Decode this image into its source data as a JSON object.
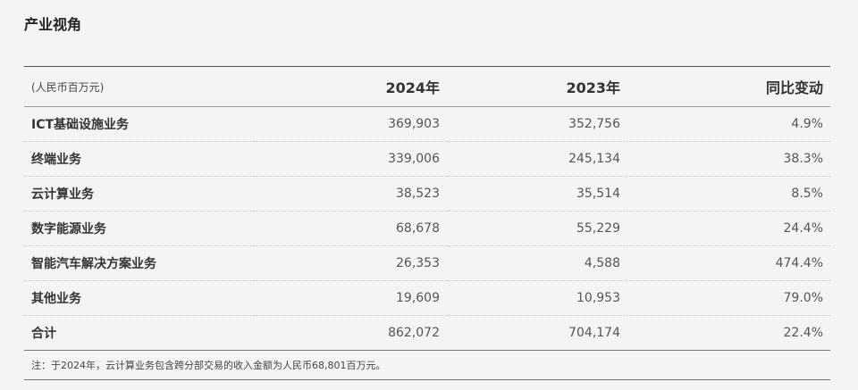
{
  "section": {
    "title": "产业视角"
  },
  "table": {
    "headers": [
      "(人民币百万元)",
      "2024年",
      "2023年",
      "同比变动"
    ],
    "rows": [
      {
        "label": "ICT基础设施业务",
        "y2024": "369,903",
        "y2023": "352,756",
        "change": "4.9%"
      },
      {
        "label": "终端业务",
        "y2024": "339,006",
        "y2023": "245,134",
        "change": "38.3%"
      },
      {
        "label": "云计算业务",
        "y2024": "38,523",
        "y2023": "35,514",
        "change": "8.5%"
      },
      {
        "label": "数字能源业务",
        "y2024": "68,678",
        "y2023": "55,229",
        "change": "24.4%"
      },
      {
        "label": "智能汽车解决方案业务",
        "y2024": "26,353",
        "y2023": "4,588",
        "change": "474.4%"
      },
      {
        "label": "其他业务",
        "y2024": "19,609",
        "y2023": "10,953",
        "change": "79.0%"
      }
    ],
    "total": {
      "label": "合计",
      "y2024": "862,072",
      "y2023": "704,174",
      "change": "22.4%"
    }
  },
  "note": "注：于2024年，云计算业务包含跨分部交易的收入金额为人民币68,801百万元。"
}
